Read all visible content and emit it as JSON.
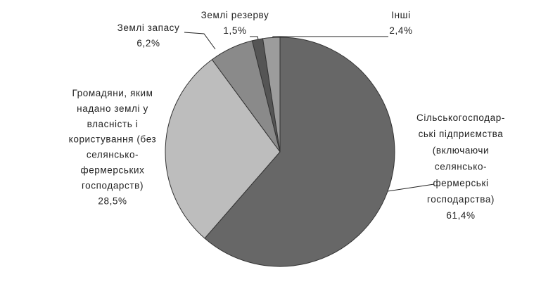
{
  "chart_data": {
    "type": "pie",
    "categories": [
      "Сільськогосподар-\nські підприємства\n(включаючи\nселянсько-\nфермерські\nгосподарства)",
      "Громадяни, яким\nнадано землі у\nвласність і\nкористування (без\nселянсько-\nфермерських\nгосподарств)",
      "Землі запасу",
      "Землі резерву",
      "Інші"
    ],
    "values": [
      61.4,
      28.5,
      6.2,
      1.5,
      2.4
    ],
    "value_labels": [
      "61,4%",
      "28,5%",
      "6,2%",
      "1,5%",
      "2,4%"
    ],
    "colors": [
      "#676767",
      "#bdbdbd",
      "#8a8a8a",
      "#555555",
      "#9c9c9c"
    ]
  }
}
